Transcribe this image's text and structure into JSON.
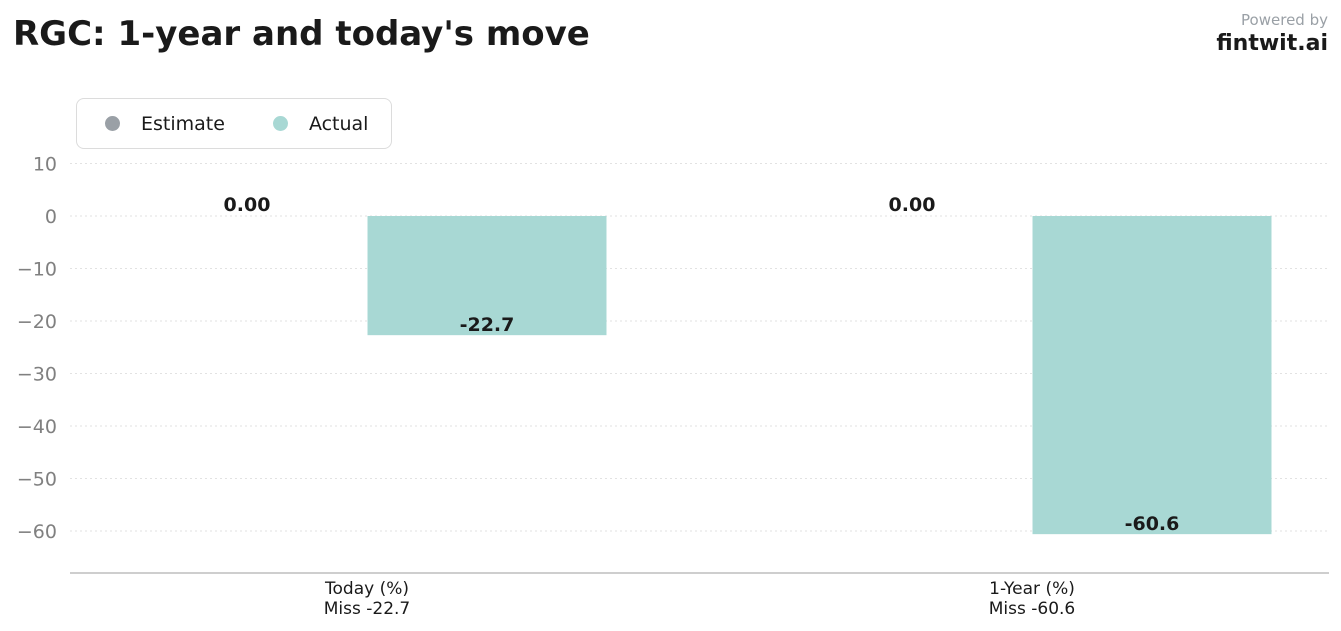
{
  "header": {
    "title": "RGC: 1-year and today's move",
    "powered_by": "Powered by",
    "brand": "fintwit.ai"
  },
  "legend": [
    {
      "label": "Estimate",
      "color": "#9aa0a6"
    },
    {
      "label": "Actual",
      "color": "#a8d8d4"
    }
  ],
  "chart_data": {
    "type": "bar",
    "categories": [
      [
        "Today (%)",
        "Miss -22.7"
      ],
      [
        "1-Year (%)",
        "Miss -60.6"
      ]
    ],
    "series": [
      {
        "name": "Estimate",
        "color": "#9aa0a6",
        "values": [
          0.0,
          0.0
        ],
        "labels": [
          "0.00",
          "0.00"
        ]
      },
      {
        "name": "Actual",
        "color": "#a8d8d4",
        "values": [
          -22.7,
          -60.6
        ],
        "labels": [
          "-22.7",
          "-60.6"
        ]
      }
    ],
    "ylim": [
      -68,
      13
    ],
    "yticks": [
      10,
      0,
      -10,
      -20,
      -30,
      -40,
      -50,
      -60
    ],
    "ytick_labels": [
      "10",
      "0",
      "−10",
      "−20",
      "−30",
      "−40",
      "−50",
      "−60"
    ],
    "grid": true,
    "legend_position": "top-left"
  }
}
